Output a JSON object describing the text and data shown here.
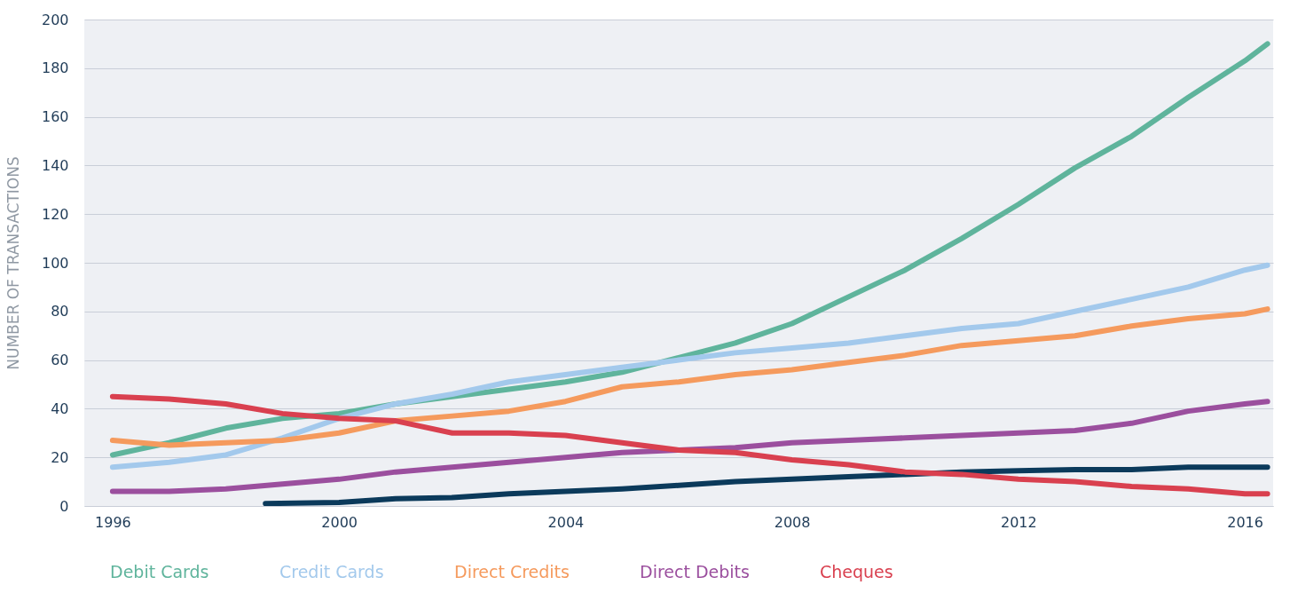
{
  "chart_data": {
    "type": "line",
    "ylabel": "NUMBER OF TRANSACTIONS",
    "xlim": [
      1995.5,
      2016.5
    ],
    "xticks": [
      1996,
      2000,
      2004,
      2008,
      2012,
      2016
    ],
    "ylim": [
      0,
      200
    ],
    "yticks": [
      0,
      20,
      40,
      60,
      80,
      100,
      120,
      140,
      160,
      180,
      200
    ],
    "grid": "y",
    "legend": "bottom",
    "marker": "none",
    "line_style": "solid",
    "series": [
      {
        "name": "Debit Cards",
        "color": "#5fb49c",
        "x": [
          1996,
          1997,
          1998,
          1999,
          2000,
          2001,
          2002,
          2003,
          2004,
          2005,
          2006,
          2007,
          2008,
          2009,
          2010,
          2011,
          2012,
          2013,
          2014,
          2015,
          2016,
          2016.4
        ],
        "values": [
          21,
          26,
          32,
          36,
          38,
          42,
          45,
          48,
          51,
          55,
          61,
          67,
          75,
          86,
          97,
          110,
          124,
          139,
          152,
          168,
          183,
          190
        ]
      },
      {
        "name": "Credit Cards",
        "color": "#a3c9ec",
        "x": [
          1996,
          1997,
          1998,
          1999,
          2000,
          2001,
          2002,
          2003,
          2004,
          2005,
          2006,
          2007,
          2008,
          2009,
          2010,
          2011,
          2012,
          2013,
          2014,
          2015,
          2016,
          2016.4
        ],
        "values": [
          16,
          18,
          21,
          28,
          36,
          42,
          46,
          51,
          54,
          57,
          60,
          63,
          65,
          67,
          70,
          73,
          75,
          80,
          85,
          90,
          97,
          99
        ]
      },
      {
        "name": "Direct Credits",
        "color": "#f59a5d",
        "x": [
          1996,
          1997,
          1998,
          1999,
          2000,
          2001,
          2002,
          2003,
          2004,
          2005,
          2006,
          2007,
          2008,
          2009,
          2010,
          2011,
          2012,
          2013,
          2014,
          2015,
          2016,
          2016.4
        ],
        "values": [
          27,
          25,
          26,
          27,
          30,
          35,
          37,
          39,
          43,
          49,
          51,
          54,
          56,
          59,
          62,
          66,
          68,
          70,
          74,
          77,
          79,
          81
        ]
      },
      {
        "name": "Direct Debits",
        "color": "#9b4f9e",
        "x": [
          1996,
          1997,
          1998,
          1999,
          2000,
          2001,
          2002,
          2003,
          2004,
          2005,
          2006,
          2007,
          2008,
          2009,
          2010,
          2011,
          2012,
          2013,
          2014,
          2015,
          2016,
          2016.4
        ],
        "values": [
          6,
          6,
          7,
          9,
          11,
          14,
          16,
          18,
          20,
          22,
          23,
          24,
          26,
          27,
          28,
          29,
          30,
          31,
          34,
          39,
          42,
          43
        ]
      },
      {
        "color": "#0b3a5b",
        "x": [
          1998.7,
          2000,
          2001,
          2002,
          2003,
          2004,
          2005,
          2006,
          2007,
          2008,
          2009,
          2010,
          2011,
          2012,
          2013,
          2014,
          2015,
          2016,
          2016.4
        ],
        "values": [
          1,
          1.5,
          3,
          3.5,
          5,
          6,
          7,
          8.5,
          10,
          11,
          12,
          13,
          14,
          14.5,
          15,
          15,
          16,
          16,
          16
        ]
      },
      {
        "name": "Cheques",
        "color": "#d9404f",
        "x": [
          1996,
          1997,
          1998,
          1999,
          2000,
          2001,
          2002,
          2003,
          2004,
          2005,
          2006,
          2007,
          2008,
          2009,
          2010,
          2011,
          2012,
          2013,
          2014,
          2015,
          2016,
          2016.4
        ],
        "values": [
          45,
          44,
          42,
          38,
          36,
          35,
          30,
          30,
          29,
          26,
          23,
          22,
          19,
          17,
          14,
          13,
          11,
          10,
          8,
          7,
          5,
          5
        ]
      }
    ]
  }
}
